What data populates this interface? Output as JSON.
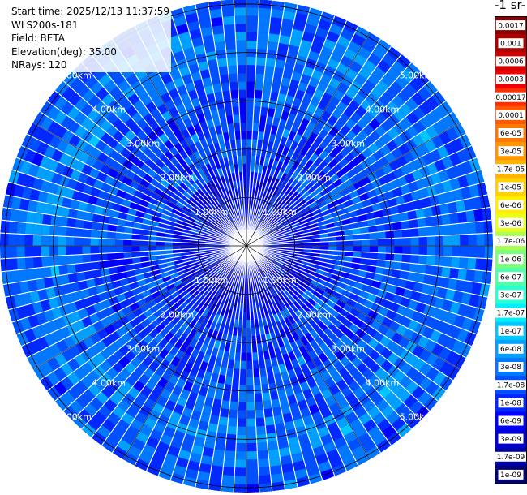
{
  "info": {
    "start_time": "Start time: 2025/12/13 11:37:59",
    "instrument": "WLS200s-181",
    "field": "Field: BETA",
    "elevation": "Elevation(deg): 35.00",
    "nrays": "NRays: 120"
  },
  "colorbar_title": "-1 sr-",
  "chart_data": {
    "type": "heatmap",
    "projection": "polar PPI",
    "field": "BETA",
    "rays": 120,
    "range_rings_km": [
      1,
      2,
      3,
      4,
      5
    ],
    "range_labels": [
      "1.00km",
      "2.00km",
      "3.00km",
      "4.00km",
      "5.00km"
    ],
    "max_range_km": 5.1,
    "colorbar": {
      "scale": "log",
      "labels": [
        "0.0017",
        "0.001",
        "0.0006",
        "0.0003",
        "0.00017",
        "0.0001",
        "6e-05",
        "3e-05",
        "1.7e-05",
        "1e-05",
        "6e-06",
        "3e-06",
        "1.7e-06",
        "1e-06",
        "6e-07",
        "3e-07",
        "1.7e-07",
        "1e-07",
        "6e-08",
        "3e-08",
        "1.7e-08",
        "1e-08",
        "6e-09",
        "3e-09",
        "1.7e-09",
        "1e-09"
      ],
      "colors": [
        "#8b0000",
        "#b00000",
        "#d40000",
        "#f00000",
        "#ff3000",
        "#ff5a00",
        "#ff7800",
        "#ff9600",
        "#ffb400",
        "#ffd200",
        "#ffee00",
        "#e6ff1e",
        "#aaff55",
        "#7cff7c",
        "#50ffaa",
        "#28ffd4",
        "#00f0ff",
        "#00c8ff",
        "#00a0ff",
        "#0078ff",
        "#0050ff",
        "#0028ff",
        "#0000ff",
        "#0000d4",
        "#0000aa",
        "#00007a"
      ]
    }
  }
}
